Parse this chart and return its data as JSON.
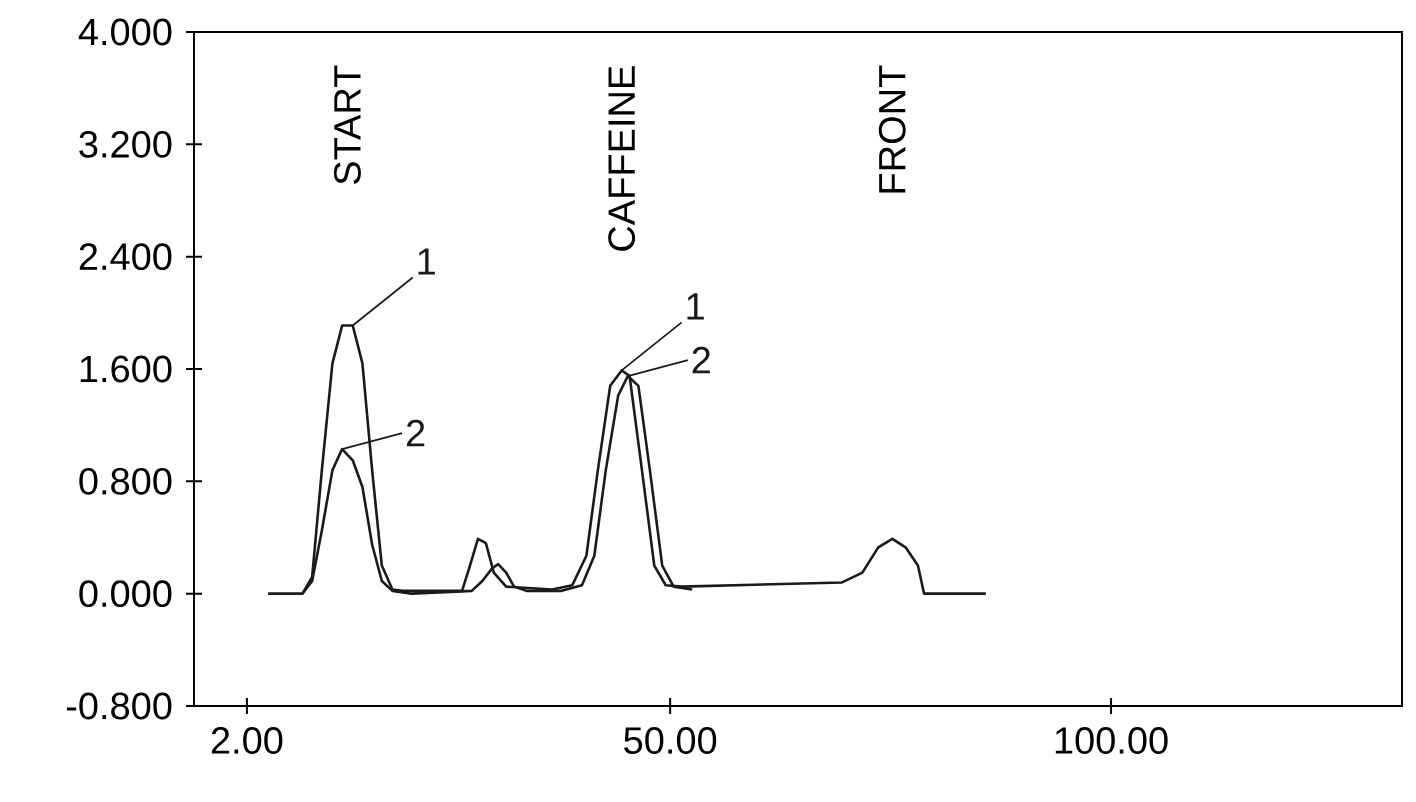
{
  "chart_data": {
    "type": "line",
    "xlim": [
      -4,
      133
    ],
    "ylim": [
      -0.8,
      4.0
    ],
    "xticks": [
      {
        "value": 2,
        "label": "2.00"
      },
      {
        "value": 50,
        "label": "50.00"
      },
      {
        "value": 100,
        "label": "100.00"
      }
    ],
    "yticks": [
      {
        "value": -0.8,
        "label": "-0.800"
      },
      {
        "value": 0,
        "label": "0.000"
      },
      {
        "value": 0.8,
        "label": "0.800"
      },
      {
        "value": 1.6,
        "label": "1.600"
      },
      {
        "value": 2.4,
        "label": "2.400"
      },
      {
        "value": 3.2,
        "label": "3.200"
      },
      {
        "value": 4.0,
        "label": "4.000"
      }
    ],
    "series": [
      {
        "name": "1",
        "color": "#1a1a1a",
        "x": [
          4.4,
          8.3,
          9.4,
          10.5,
          11.7,
          12.8,
          14.0,
          15.1,
          16.2,
          17.3,
          18.5,
          19.6,
          26.4,
          27.3,
          28.2,
          29.1,
          30.0,
          31.4,
          36.6,
          38.9,
          40.5,
          41.8,
          43.2,
          44.5,
          45.4,
          46.8,
          48.2,
          49.5,
          51.3,
          69.5,
          71.8,
          73.6,
          75.2,
          76.7,
          78.1,
          78.8,
          79.2,
          85.8
        ],
        "values": [
          0,
          0,
          0.12,
          0.88,
          1.64,
          1.91,
          1.91,
          1.64,
          0.88,
          0.2,
          0.03,
          0.02,
          0.02,
          0.2,
          0.39,
          0.36,
          0.15,
          0.05,
          0.03,
          0.06,
          0.27,
          0.88,
          1.48,
          1.59,
          1.55,
          0.88,
          0.2,
          0.06,
          0.05,
          0.08,
          0.15,
          0.33,
          0.39,
          0.33,
          0.2,
          0,
          0,
          0
        ]
      },
      {
        "name": "2",
        "color": "#1a1a1a",
        "x": [
          8.3,
          9.4,
          10.5,
          11.7,
          12.8,
          14.0,
          15.1,
          16.2,
          17.3,
          18.5,
          20.7,
          27.5,
          28.7,
          29.8,
          30.5,
          31.4,
          32.3,
          33.7,
          37.7,
          40.0,
          41.4,
          42.7,
          44.1,
          45.2,
          46.4,
          47.7,
          49.1,
          50.4,
          52.5
        ],
        "values": [
          0,
          0.09,
          0.45,
          0.88,
          1.03,
          0.95,
          0.76,
          0.35,
          0.09,
          0.02,
          0,
          0.02,
          0.09,
          0.18,
          0.21,
          0.15,
          0.05,
          0.02,
          0.02,
          0.06,
          0.27,
          0.88,
          1.41,
          1.55,
          1.48,
          0.88,
          0.2,
          0.05,
          0.03
        ]
      }
    ],
    "annotations": [
      "START",
      "CAFFEINE",
      "FRONT"
    ]
  }
}
